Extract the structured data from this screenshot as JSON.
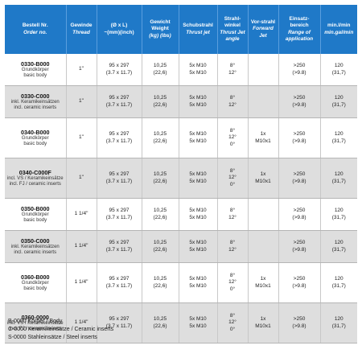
{
  "headers": [
    {
      "de": "Bestell Nr.",
      "en": "Order no."
    },
    {
      "de": "Gewinde",
      "en": "Thread"
    },
    {
      "de": "(Ø x L)",
      "en": "~(mm)(inch)"
    },
    {
      "de": "Gewicht Weight",
      "en": "(kg) (lbs)"
    },
    {
      "de": "Schubstrahl",
      "en": "Thrust jet"
    },
    {
      "de": "Strahl-winkel",
      "en": "Thrust Jet angle"
    },
    {
      "de": "Vor-strahl",
      "en": "Forward Jet"
    },
    {
      "de": "Einsatz-bereich",
      "en": "Range of application"
    },
    {
      "de": "min.l/min",
      "en": "min.gal/min"
    }
  ],
  "rows": [
    {
      "order": "0330-B000",
      "desc": [
        "Grundkörper",
        "basic body"
      ],
      "thread": "1\"",
      "dim": [
        "95 x 297",
        "(3.7 x 11.7)"
      ],
      "weight": [
        "10,25",
        "(22,6)"
      ],
      "thrust": [
        "5x M10",
        "5x M10"
      ],
      "angle": [
        "8°",
        "12°"
      ],
      "forward": [],
      "range": [
        ">250",
        "(>9.8)"
      ],
      "flow": [
        "120",
        "(31,7)"
      ]
    },
    {
      "order": "0330-C000",
      "desc": [
        "inkl. Keramikeinsätzen",
        "incl. ceramic inserts"
      ],
      "thread": "1\"",
      "dim": [
        "95 x 297",
        "(3.7 x 11.7)"
      ],
      "weight": [
        "10,25",
        "(22,6)"
      ],
      "thrust": [
        "5x M10",
        "5x M10"
      ],
      "angle": [
        "8°",
        "12°"
      ],
      "forward": [],
      "range": [
        ">250",
        "(>9.8)"
      ],
      "flow": [
        "120",
        "(31,7)"
      ]
    },
    {
      "order": "0340-B000",
      "desc": [
        "Grundkörper",
        "basic body"
      ],
      "thread": "1\"",
      "dim": [
        "95 x 297",
        "(3.7 x 11.7)"
      ],
      "weight": [
        "10,25",
        "(22,6)"
      ],
      "thrust": [
        "5x M10",
        "5x M10"
      ],
      "angle": [
        "8°",
        "12°",
        "0°"
      ],
      "forward": [
        "1x",
        "M10x1"
      ],
      "range": [
        ">250",
        "(>9.8)"
      ],
      "flow": [
        "120",
        "(31,7)"
      ]
    },
    {
      "order": "0340-C000F",
      "desc": [
        "incl. VS / Keramikeinsätze",
        "incl. FJ / ceramic inserts"
      ],
      "thread": "1\"",
      "dim": [
        "95 x 297",
        "(3.7 x 11.7)"
      ],
      "weight": [
        "10,25",
        "(22,6)"
      ],
      "thrust": [
        "5x M10",
        "5x M10"
      ],
      "angle": [
        "8°",
        "12°",
        "0°"
      ],
      "forward": [
        "1x",
        "M10x1"
      ],
      "range": [
        ">250",
        "(>9.8)"
      ],
      "flow": [
        "120",
        "(31,7)"
      ]
    },
    {
      "order": "0350-B000",
      "desc": [
        "Grundkörper",
        "basic body"
      ],
      "thread": "1 1/4\"",
      "dim": [
        "95 x 297",
        "(3.7 x 11.7)"
      ],
      "weight": [
        "10,25",
        "(22,6)"
      ],
      "thrust": [
        "5x M10",
        "5x M10"
      ],
      "angle": [
        "8°",
        "12°"
      ],
      "forward": [],
      "range": [
        ">250",
        "(>9.8)"
      ],
      "flow": [
        "120",
        "(31,7)"
      ]
    },
    {
      "order": "0350-C000",
      "desc": [
        "inkl. Keramikeinsätzen",
        "incl. ceramic inserts"
      ],
      "thread": "1 1/4\"",
      "dim": [
        "95 x 297",
        "(3.7 x 11.7)"
      ],
      "weight": [
        "10,25",
        "(22,6)"
      ],
      "thrust": [
        "5x M10",
        "5x M10"
      ],
      "angle": [
        "8°",
        "12°"
      ],
      "forward": [],
      "range": [
        ">250",
        "(>9.8)"
      ],
      "flow": [
        "120",
        "(31,7)"
      ]
    },
    {
      "order": "0360-B000",
      "desc": [
        "Grundkörper",
        "basic body"
      ],
      "thread": "1 1/4\"",
      "dim": [
        "95 x 297",
        "(3.7 x 11.7)"
      ],
      "weight": [
        "10,25",
        "(22,6)"
      ],
      "thrust": [
        "5x M10",
        "5x M10"
      ],
      "angle": [
        "8°",
        "12°",
        "0°"
      ],
      "forward": [
        "1x",
        "M10x1"
      ],
      "range": [
        ">250",
        "(>9.8)"
      ],
      "flow": [
        "120",
        "(31,7)"
      ]
    },
    {
      "order": "0360-0000",
      "desc": [
        "inkl. VS / Keramikeinsätze",
        "incl. FJ / ceramic inserts"
      ],
      "thread": "1 1/4\"",
      "dim": [
        "95 x 297",
        "(3.7 x 11.7)"
      ],
      "weight": [
        "10,25",
        "(22,6)"
      ],
      "thrust": [
        "5x M10",
        "5x M10"
      ],
      "angle": [
        "8°",
        "12°",
        "0°"
      ],
      "forward": [
        "1x",
        "M10x1"
      ],
      "range": [
        ">250",
        "(>9.8)"
      ],
      "flow": [
        "120",
        "(31,7)"
      ]
    }
  ],
  "legend": [
    "B-0000 Körper / Body",
    "C-0000 Keramikeinsätze / Ceramic inserts",
    "S-0000 Stahleinsätze / Steel inserts"
  ],
  "colors": {
    "header_bg": "#1f79c8",
    "header_text": "#ffffff",
    "row_shade": "#dedede"
  }
}
